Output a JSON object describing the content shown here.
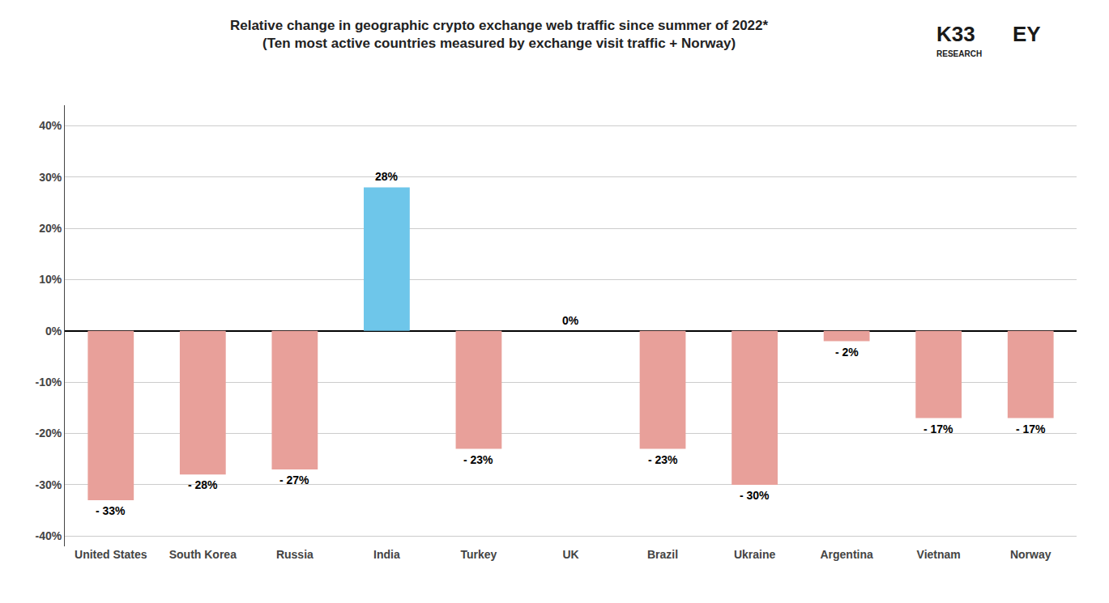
{
  "chart_data": {
    "type": "bar",
    "title": "Relative change in geographic crypto exchange web traffic since summer of 2022*",
    "subtitle": "(Ten most active countries measured by exchange visit traffic + Norway)",
    "categories": [
      "United States",
      "South Korea",
      "Russia",
      "India",
      "Turkey",
      "UK",
      "Brazil",
      "Ukraine",
      "Argentina",
      "Vietnam",
      "Norway"
    ],
    "values": [
      -33,
      -28,
      -27,
      28,
      -23,
      0,
      -23,
      -30,
      -2,
      -17,
      -17
    ],
    "value_labels": [
      "- 33%",
      "- 28%",
      "- 27%",
      "28%",
      "- 23%",
      "0%",
      "- 23%",
      "- 30%",
      "- 2%",
      "- 17%",
      "- 17%"
    ],
    "colors": [
      "#E8A09A",
      "#E8A09A",
      "#E8A09A",
      "#6EC6EA",
      "#E8A09A",
      "#6EC6EA",
      "#E8A09A",
      "#E8A09A",
      "#E8A09A",
      "#E8A09A",
      "#E8A09A"
    ],
    "ylim": [
      -42,
      44
    ],
    "yticks": [
      {
        "value": -40,
        "label": "-40%"
      },
      {
        "value": -30,
        "label": "-30%"
      },
      {
        "value": -20,
        "label": "-20%"
      },
      {
        "value": -10,
        "label": "-10%"
      },
      {
        "value": 0,
        "label": "0%"
      },
      {
        "value": 10,
        "label": "10%"
      },
      {
        "value": 20,
        "label": "20%"
      },
      {
        "value": 30,
        "label": "30%"
      },
      {
        "value": 40,
        "label": "40%"
      }
    ],
    "grid": true,
    "data_labels": true,
    "annotations": [
      "K33",
      "RESEARCH",
      "EY"
    ]
  }
}
